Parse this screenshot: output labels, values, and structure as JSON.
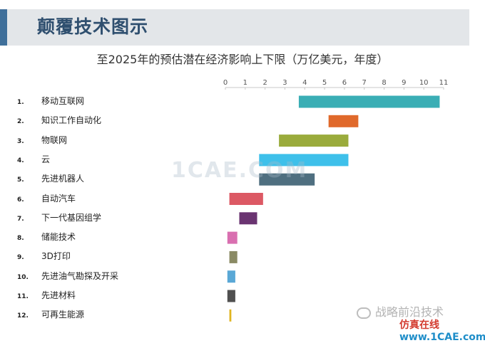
{
  "header": {
    "title": "颠覆技术图示",
    "accent_color": "#3f6f9a",
    "background_color": "#e3e6e9"
  },
  "chart_data": {
    "type": "bar",
    "subtype": "floating-range-horizontal",
    "title": "至2025年的预估潜在经济影响上下限（万亿美元，年度）",
    "xlabel": "",
    "ylabel": "",
    "xlim": [
      0,
      11
    ],
    "x_ticks": [
      "0",
      "1",
      "2",
      "3",
      "4",
      "5",
      "6",
      "7",
      "8",
      "9",
      "10",
      "11"
    ],
    "grid": false,
    "legend": "none",
    "categories": [
      {
        "rank": "1.",
        "name": "移动互联网",
        "low": 3.7,
        "high": 10.8,
        "color": "#3aaeb5"
      },
      {
        "rank": "2.",
        "name": "知识工作自动化",
        "low": 5.2,
        "high": 6.7,
        "color": "#e0692b"
      },
      {
        "rank": "3.",
        "name": "物联网",
        "low": 2.7,
        "high": 6.2,
        "color": "#9aab3c"
      },
      {
        "rank": "4.",
        "name": "云",
        "low": 1.7,
        "high": 6.2,
        "color": "#3ec0ea"
      },
      {
        "rank": "5.",
        "name": "先进机器人",
        "low": 1.7,
        "high": 4.5,
        "color": "#4f6f80"
      },
      {
        "rank": "6.",
        "name": "自动汽车",
        "low": 0.2,
        "high": 1.9,
        "color": "#dc5964"
      },
      {
        "rank": "7.",
        "name": "下一代基因组学",
        "low": 0.7,
        "high": 1.6,
        "color": "#6a3471"
      },
      {
        "rank": "8.",
        "name": "储能技术",
        "low": 0.1,
        "high": 0.6,
        "color": "#d96fb0"
      },
      {
        "rank": "9.",
        "name": "3D打印",
        "low": 0.2,
        "high": 0.6,
        "color": "#8a8a64"
      },
      {
        "rank": "10.",
        "name": "先进油气勘探及开采",
        "low": 0.1,
        "high": 0.5,
        "color": "#5aa8d6"
      },
      {
        "rank": "11.",
        "name": "先进材料",
        "low": 0.1,
        "high": 0.5,
        "color": "#505050"
      },
      {
        "rank": "12.",
        "name": "可再生能源",
        "low": 0.2,
        "high": 0.3,
        "color": "#e0b520"
      }
    ]
  },
  "watermark": {
    "text": "1CAE.COM"
  },
  "footer": {
    "wechat_text": "战略前沿技术",
    "site_logo_cn": "仿真在线",
    "site_logo_url": "www.1CAE.com"
  }
}
